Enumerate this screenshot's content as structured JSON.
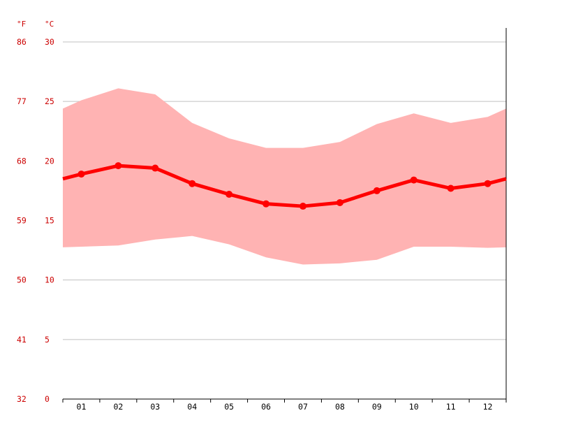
{
  "chart_data": {
    "type": "line",
    "title": "",
    "xlabel": "",
    "ylabel": "",
    "y_unit_labels": {
      "fahrenheit": "°F",
      "celsius": "°C"
    },
    "categories": [
      "01",
      "02",
      "03",
      "04",
      "05",
      "06",
      "07",
      "08",
      "09",
      "10",
      "11",
      "12"
    ],
    "ylim": [
      0,
      30
    ],
    "y_ticks_celsius": [
      "0",
      "5",
      "10",
      "15",
      "20",
      "25",
      "30"
    ],
    "y_ticks_fahrenheit": [
      "32",
      "41",
      "50",
      "59",
      "68",
      "77",
      "86"
    ],
    "grid": true,
    "series": [
      {
        "role": "mean",
        "values": [
          18.9,
          19.6,
          19.4,
          18.1,
          17.2,
          16.4,
          16.2,
          16.5,
          17.5,
          18.4,
          17.7,
          18.1
        ]
      },
      {
        "role": "max",
        "values": [
          25.1,
          26.1,
          25.6,
          23.2,
          21.9,
          21.1,
          21.1,
          21.6,
          23.1,
          24.0,
          23.2,
          23.7
        ]
      },
      {
        "role": "min",
        "values": [
          12.8,
          12.9,
          13.4,
          13.7,
          13.0,
          11.9,
          11.3,
          11.4,
          11.7,
          12.8,
          12.8,
          12.7
        ]
      }
    ],
    "colors": {
      "mean": "#ff0000",
      "range": "#ffb3b3",
      "tick_label": "#cc0000",
      "grid": "#c0c0c0"
    }
  }
}
